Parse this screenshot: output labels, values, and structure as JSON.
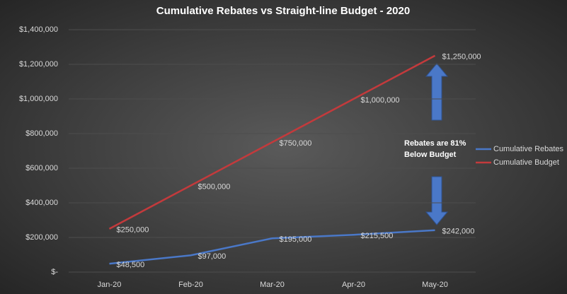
{
  "chart_data": {
    "type": "line",
    "title": "Cumulative Rebates vs Straight-line Budget - 2020",
    "categories": [
      "Jan-20",
      "Feb-20",
      "Mar-20",
      "Apr-20",
      "May-20"
    ],
    "series": [
      {
        "name": "Cumulative Rebates",
        "color": "#4a78c8",
        "values": [
          48500,
          97000,
          195000,
          215500,
          242000
        ],
        "value_labels": [
          "$48,500",
          "$97,000",
          "$195,000",
          "$215,500",
          "$242,000"
        ]
      },
      {
        "name": "Cumulative Budget",
        "color": "#c33a3c",
        "values": [
          250000,
          500000,
          750000,
          1000000,
          1250000
        ],
        "value_labels": [
          "$250,000",
          "$500,000",
          "$750,000",
          "$1,000,000",
          "$1,250,000"
        ]
      }
    ],
    "ylim": [
      0,
      1400000
    ],
    "yticks": [
      {
        "value": 0,
        "label": "$-"
      },
      {
        "value": 200000,
        "label": "$200,000"
      },
      {
        "value": 400000,
        "label": "$400,000"
      },
      {
        "value": 600000,
        "label": "$600,000"
      },
      {
        "value": 800000,
        "label": "$800,000"
      },
      {
        "value": 1000000,
        "label": "$1,000,000"
      },
      {
        "value": 1200000,
        "label": "$1,200,000"
      },
      {
        "value": 1400000,
        "label": "$1,400,000"
      }
    ],
    "grid": true,
    "legend": "right",
    "annotation": [
      "Rebates are 81%",
      "Below Budget"
    ]
  }
}
